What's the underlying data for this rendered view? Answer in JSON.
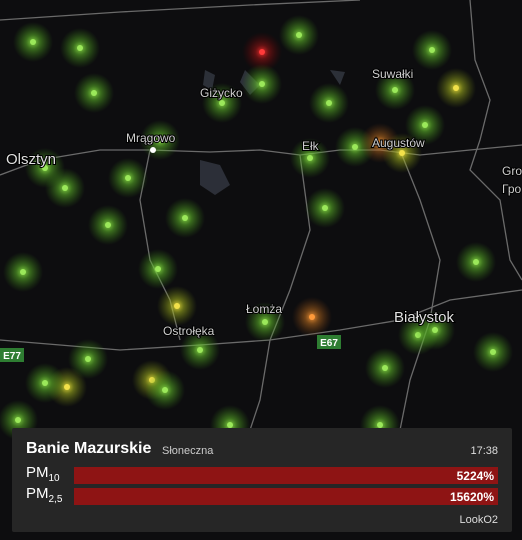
{
  "map": {
    "places": [
      "Olsztyn",
      "Mrągowo",
      "Giżycko",
      "Ełk",
      "Suwałki",
      "Augustów",
      "Gro",
      "Гро",
      "Białystok",
      "Łomża",
      "Ostrołęka"
    ],
    "roads": [
      "E77",
      "E67"
    ]
  },
  "panel": {
    "station": "Banie Mazurskie",
    "street": "Słoneczna",
    "time": "17:38",
    "rows": [
      {
        "label": "PM",
        "sub": "10",
        "value": "5224%"
      },
      {
        "label": "PM",
        "sub": "2,5",
        "value": "15620%"
      }
    ],
    "brand": "LookO2"
  }
}
